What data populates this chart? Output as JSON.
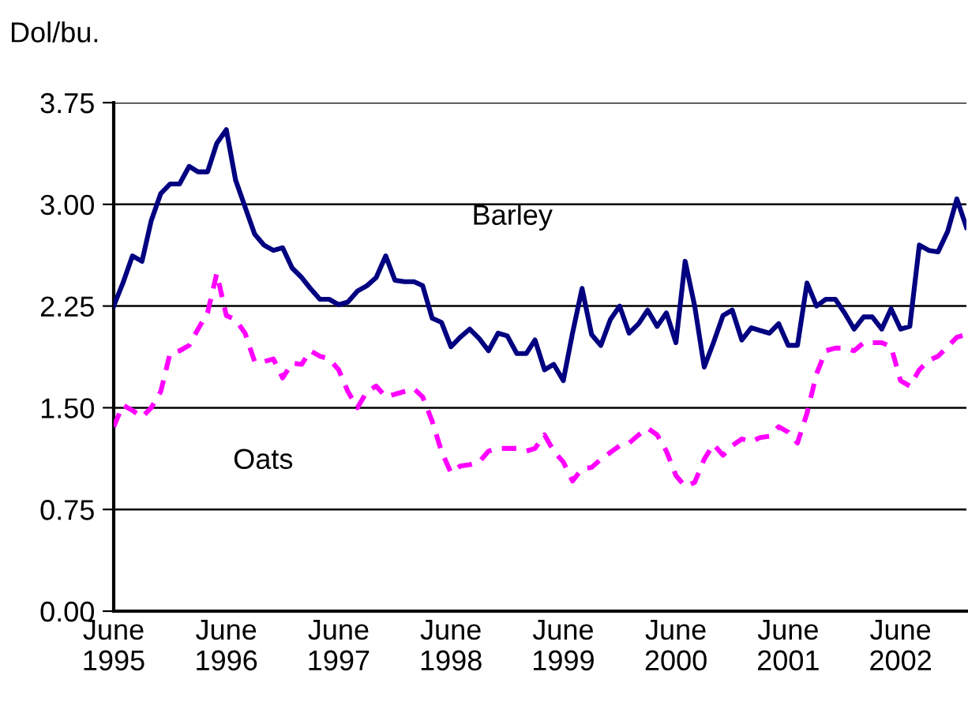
{
  "chart_data": {
    "type": "line",
    "ylabel": "Dol/bu.",
    "x": [
      "1995-06",
      "1995-07",
      "1995-08",
      "1995-09",
      "1995-10",
      "1995-11",
      "1995-12",
      "1996-01",
      "1996-02",
      "1996-03",
      "1996-04",
      "1996-05",
      "1996-06",
      "1996-07",
      "1996-08",
      "1996-09",
      "1996-10",
      "1996-11",
      "1996-12",
      "1997-01",
      "1997-02",
      "1997-03",
      "1997-04",
      "1997-05",
      "1997-06",
      "1997-07",
      "1997-08",
      "1997-09",
      "1997-10",
      "1997-11",
      "1997-12",
      "1998-01",
      "1998-02",
      "1998-03",
      "1998-04",
      "1998-05",
      "1998-06",
      "1998-07",
      "1998-08",
      "1998-09",
      "1998-10",
      "1998-11",
      "1998-12",
      "1999-01",
      "1999-02",
      "1999-03",
      "1999-04",
      "1999-05",
      "1999-06",
      "1999-07",
      "1999-08",
      "1999-09",
      "1999-10",
      "1999-11",
      "1999-12",
      "2000-01",
      "2000-02",
      "2000-03",
      "2000-04",
      "2000-05",
      "2000-06",
      "2000-07",
      "2000-08",
      "2000-09",
      "2000-10",
      "2000-11",
      "2000-12",
      "2001-01",
      "2001-02",
      "2001-03",
      "2001-04",
      "2001-05",
      "2001-06",
      "2001-07",
      "2001-08",
      "2001-09",
      "2001-10",
      "2001-11",
      "2001-12",
      "2002-01",
      "2002-02",
      "2002-03",
      "2002-04",
      "2002-05",
      "2002-06",
      "2002-07",
      "2002-08",
      "2002-09",
      "2002-10",
      "2002-11",
      "2002-12",
      "2003-01"
    ],
    "series": [
      {
        "name": "Barley",
        "color": "#000080",
        "line_style": "solid",
        "values": [
          2.25,
          2.42,
          2.62,
          2.58,
          2.88,
          3.08,
          3.15,
          3.15,
          3.28,
          3.24,
          3.24,
          3.45,
          3.55,
          3.18,
          2.98,
          2.78,
          2.7,
          2.66,
          2.68,
          2.53,
          2.46,
          2.38,
          2.3,
          2.3,
          2.26,
          2.28,
          2.36,
          2.4,
          2.46,
          2.62,
          2.44,
          2.43,
          2.43,
          2.4,
          2.16,
          2.13,
          1.95,
          2.02,
          2.08,
          2.01,
          1.92,
          2.05,
          2.03,
          1.9,
          1.9,
          2.0,
          1.78,
          1.82,
          1.7,
          2.05,
          2.38,
          2.04,
          1.96,
          2.15,
          2.25,
          2.05,
          2.12,
          2.22,
          2.1,
          2.2,
          1.98,
          2.58,
          2.25,
          1.8,
          1.98,
          2.18,
          2.22,
          2.0,
          2.09,
          2.07,
          2.05,
          2.12,
          1.96,
          1.96,
          2.42,
          2.25,
          2.3,
          2.3,
          2.2,
          2.08,
          2.17,
          2.17,
          2.08,
          2.23,
          2.08,
          2.1,
          2.7,
          2.66,
          2.65,
          2.8,
          3.04,
          2.83
        ]
      },
      {
        "name": "Oats",
        "color": "#ff00ff",
        "line_style": "dashed",
        "values": [
          1.36,
          1.52,
          1.48,
          1.43,
          1.5,
          1.62,
          1.9,
          1.92,
          1.96,
          2.08,
          2.2,
          2.49,
          2.18,
          2.15,
          2.05,
          1.84,
          1.84,
          1.86,
          1.72,
          1.83,
          1.82,
          1.92,
          1.88,
          1.86,
          1.78,
          1.62,
          1.5,
          1.62,
          1.66,
          1.58,
          1.6,
          1.62,
          1.64,
          1.58,
          1.4,
          1.18,
          1.02,
          1.07,
          1.08,
          1.1,
          1.18,
          1.2,
          1.2,
          1.2,
          1.18,
          1.2,
          1.3,
          1.18,
          1.1,
          0.96,
          1.05,
          1.06,
          1.12,
          1.17,
          1.22,
          1.24,
          1.3,
          1.35,
          1.3,
          1.18,
          1.0,
          0.92,
          0.95,
          1.12,
          1.23,
          1.15,
          1.22,
          1.27,
          1.25,
          1.28,
          1.29,
          1.36,
          1.32,
          1.24,
          1.46,
          1.75,
          1.92,
          1.94,
          1.94,
          1.92,
          1.98,
          1.98,
          1.98,
          1.95,
          1.7,
          1.66,
          1.78,
          1.85,
          1.88,
          1.95,
          2.02,
          2.04
        ]
      }
    ],
    "xlim": [
      "1995-06",
      "2003-01"
    ],
    "xticks": [
      {
        "value": "1995-06",
        "label": "June\n1995"
      },
      {
        "value": "1996-06",
        "label": "June\n1996"
      },
      {
        "value": "1997-06",
        "label": "June\n1997"
      },
      {
        "value": "1998-06",
        "label": "June\n1998"
      },
      {
        "value": "1999-06",
        "label": "June\n1999"
      },
      {
        "value": "2000-06",
        "label": "June\n2000"
      },
      {
        "value": "2001-06",
        "label": "June\n2001"
      },
      {
        "value": "2002-06",
        "label": "June\n2002"
      }
    ],
    "ylim": [
      0,
      3.75
    ],
    "yticks": [
      {
        "value": 0,
        "label": "0.00"
      },
      {
        "value": 0.75,
        "label": "0.75"
      },
      {
        "value": 1.5,
        "label": "1.50"
      },
      {
        "value": 2.25,
        "label": "2.25"
      },
      {
        "value": 3.0,
        "label": "3.00"
      },
      {
        "value": 3.75,
        "label": "3.75"
      }
    ],
    "grid": "y",
    "legend": false,
    "marker": "none"
  }
}
